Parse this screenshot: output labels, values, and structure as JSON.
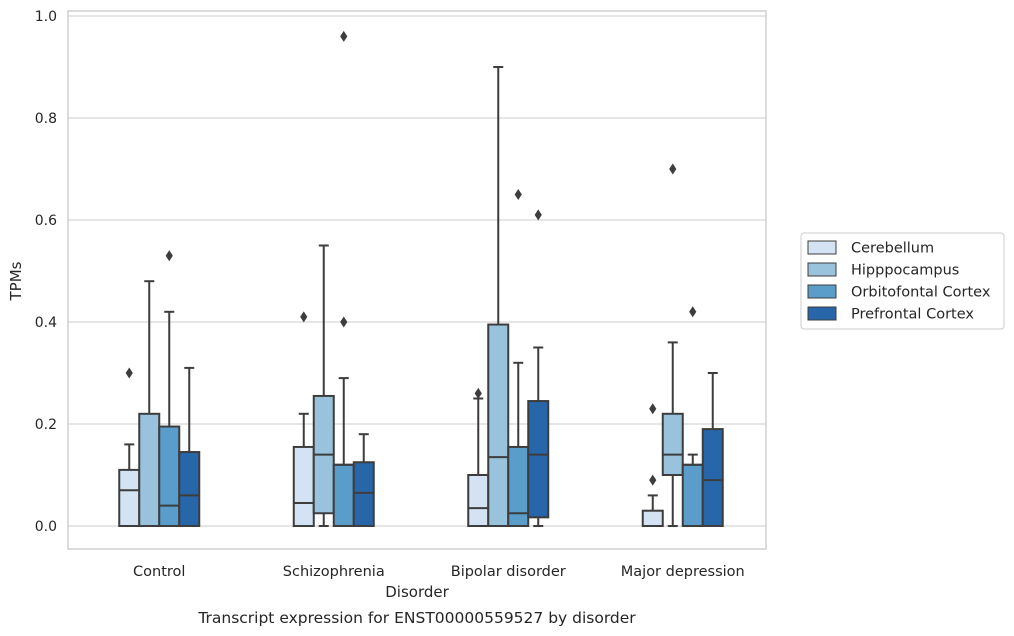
{
  "chart_data": {
    "type": "box",
    "title": "",
    "caption": "Transcript expression for ENST00000559527 by disorder",
    "xlabel": "Disorder",
    "ylabel": "TPMs",
    "ylim": [
      -0.045,
      1.01
    ],
    "yticks": [
      "0.0",
      "0.2",
      "0.4",
      "0.6",
      "0.8",
      "1.0"
    ],
    "grid": true,
    "legend_position": "right",
    "categories": [
      "Control",
      "Schizophrenia",
      "Bipolar disorder",
      "Major depression"
    ],
    "series": [
      {
        "name": "Cerebellum",
        "color": "#d3e3f3",
        "boxes": [
          {
            "whislo": 0.0,
            "q1": 0.0,
            "med": 0.07,
            "q3": 0.11,
            "whishi": 0.16,
            "fliers": [
              0.3
            ]
          },
          {
            "whislo": 0.0,
            "q1": 0.0,
            "med": 0.045,
            "q3": 0.155,
            "whishi": 0.22,
            "fliers": [
              0.41
            ]
          },
          {
            "whislo": 0.0,
            "q1": 0.0,
            "med": 0.035,
            "q3": 0.1,
            "whishi": 0.25,
            "fliers": [
              0.26
            ]
          },
          {
            "whislo": 0.0,
            "q1": 0.0,
            "med": 0.0,
            "q3": 0.03,
            "whishi": 0.06,
            "fliers": [
              0.09,
              0.23
            ]
          }
        ]
      },
      {
        "name": "Hipppocampus",
        "color": "#99c3dc",
        "boxes": [
          {
            "whislo": 0.0,
            "q1": 0.0,
            "med": 0.0,
            "q3": 0.22,
            "whishi": 0.48,
            "fliers": []
          },
          {
            "whislo": 0.0,
            "q1": 0.025,
            "med": 0.14,
            "q3": 0.255,
            "whishi": 0.55,
            "fliers": []
          },
          {
            "whislo": 0.0,
            "q1": 0.0,
            "med": 0.135,
            "q3": 0.395,
            "whishi": 0.9,
            "fliers": []
          },
          {
            "whislo": 0.0,
            "q1": 0.1,
            "med": 0.14,
            "q3": 0.22,
            "whishi": 0.36,
            "fliers": [
              0.7
            ]
          }
        ]
      },
      {
        "name": "Orbitofontal Cortex",
        "color": "#5a9dcb",
        "boxes": [
          {
            "whislo": 0.0,
            "q1": 0.0,
            "med": 0.04,
            "q3": 0.195,
            "whishi": 0.42,
            "fliers": [
              0.53
            ]
          },
          {
            "whislo": 0.0,
            "q1": 0.0,
            "med": 0.12,
            "q3": 0.12,
            "whishi": 0.29,
            "fliers": [
              0.4,
              0.96
            ]
          },
          {
            "whislo": 0.0,
            "q1": 0.0,
            "med": 0.025,
            "q3": 0.155,
            "whishi": 0.32,
            "fliers": [
              0.65
            ]
          },
          {
            "whislo": 0.0,
            "q1": 0.0,
            "med": 0.12,
            "q3": 0.12,
            "whishi": 0.14,
            "fliers": [
              0.42
            ]
          }
        ]
      },
      {
        "name": "Prefrontal Cortex",
        "color": "#2766a9",
        "boxes": [
          {
            "whislo": 0.0,
            "q1": 0.0,
            "med": 0.06,
            "q3": 0.145,
            "whishi": 0.31,
            "fliers": []
          },
          {
            "whislo": 0.0,
            "q1": 0.0,
            "med": 0.065,
            "q3": 0.125,
            "whishi": 0.18,
            "fliers": []
          },
          {
            "whislo": 0.0,
            "q1": 0.017,
            "med": 0.14,
            "q3": 0.245,
            "whishi": 0.35,
            "fliers": [
              0.61
            ]
          },
          {
            "whislo": 0.0,
            "q1": 0.0,
            "med": 0.09,
            "q3": 0.19,
            "whishi": 0.3,
            "fliers": []
          }
        ]
      }
    ]
  }
}
